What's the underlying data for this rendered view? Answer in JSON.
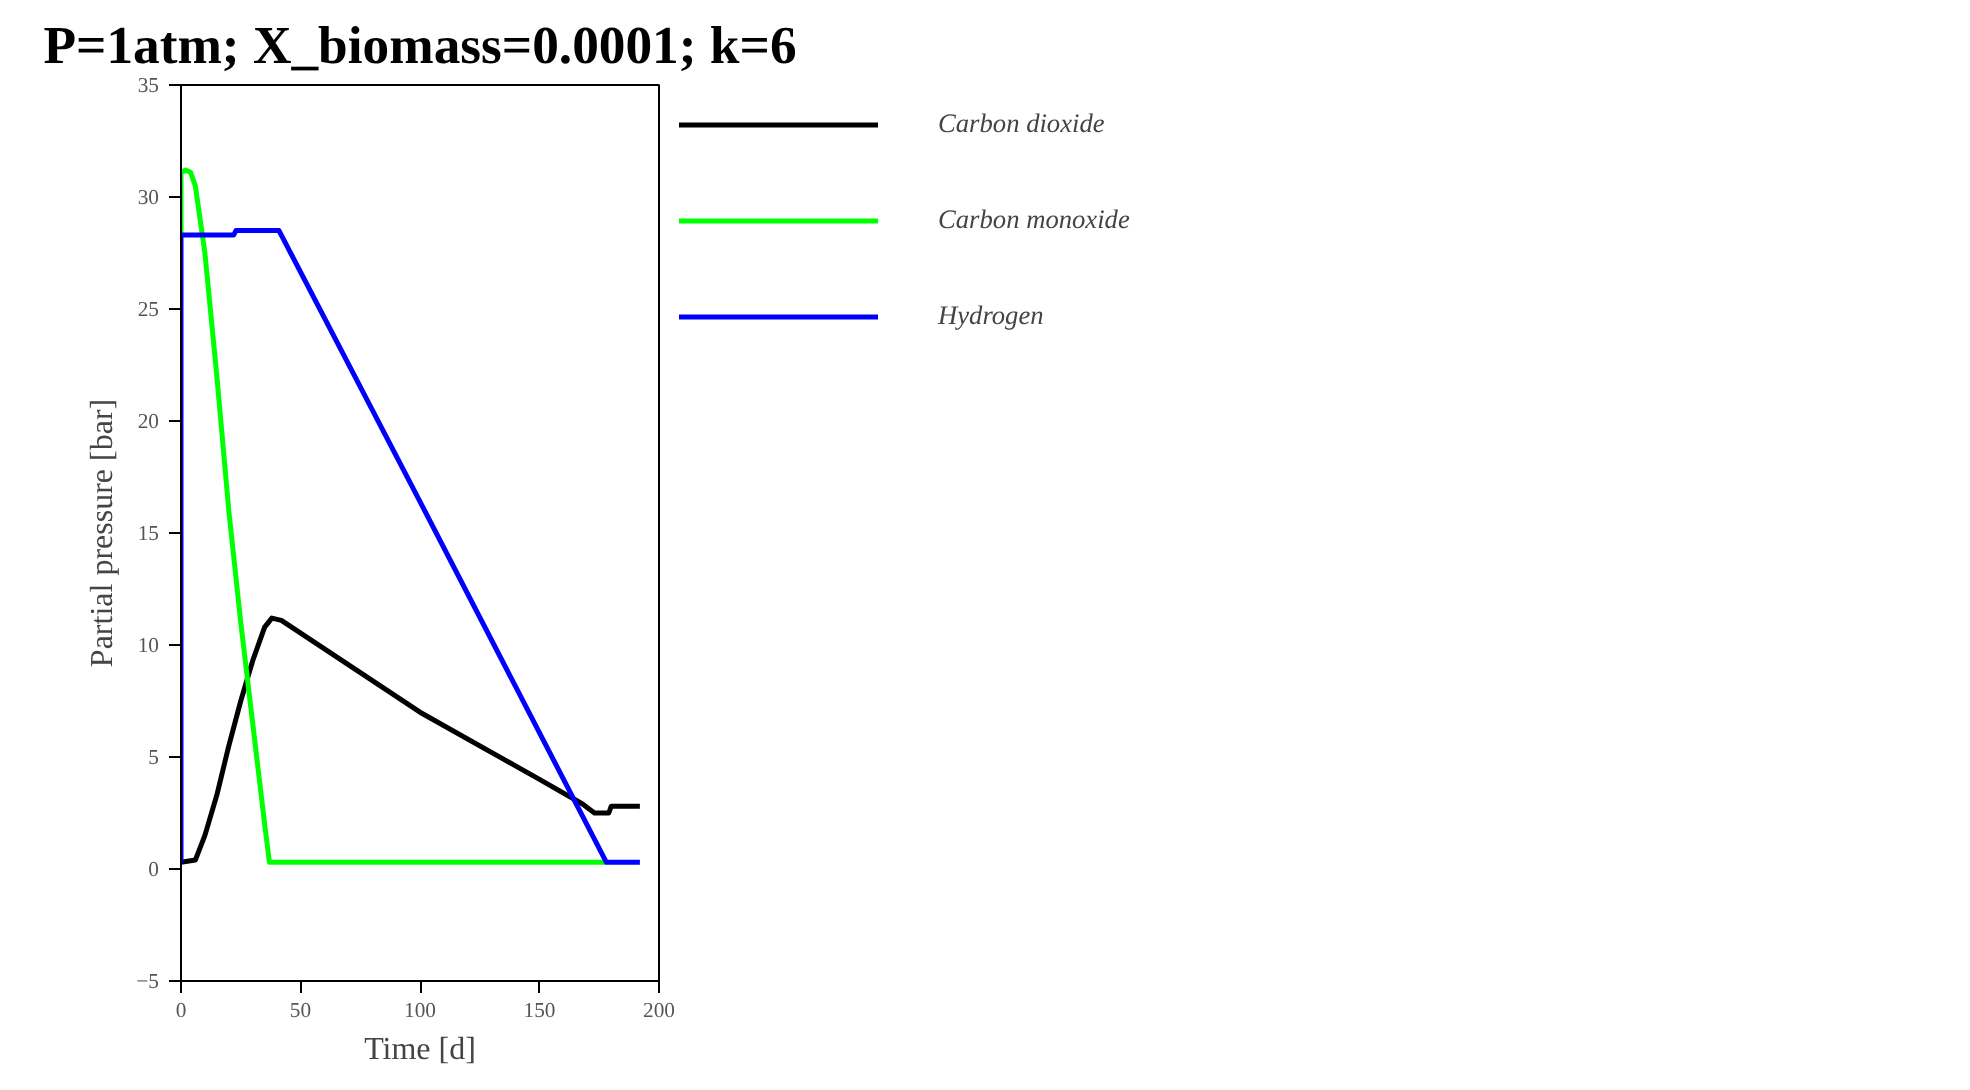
{
  "chart_data": {
    "type": "line",
    "title": "P=1atm; X_biomass=0.0001; k=6",
    "xlabel": "Time [d]",
    "ylabel": "Partial pressure [bar]",
    "xlim": [
      0,
      200
    ],
    "xticks": [
      0,
      50,
      100,
      150,
      200
    ],
    "ylim": [
      -5,
      35
    ],
    "yticks": [
      -5,
      0,
      5,
      10,
      15,
      20,
      25,
      30,
      35
    ],
    "grid": false,
    "legend": "top right",
    "marker": "none",
    "line_style": "solid",
    "series": [
      {
        "name": "Carbon dioxide",
        "color": "#000000",
        "x": [
          0,
          6,
          10,
          15,
          20,
          25,
          30,
          35,
          38,
          42,
          100,
          150,
          168,
          173,
          179,
          180,
          192
        ],
        "values": [
          0.3,
          0.4,
          1.5,
          3.3,
          5.5,
          7.5,
          9.3,
          10.8,
          11.2,
          11.1,
          7.0,
          4.0,
          2.9,
          2.5,
          2.5,
          2.8,
          2.8
        ]
      },
      {
        "name": "Carbon monoxide",
        "color": "#00ff00",
        "x": [
          0,
          0,
          2,
          4,
          6,
          8,
          10,
          15,
          20,
          25,
          30,
          35,
          37,
          178
        ],
        "values": [
          28.3,
          31.1,
          31.2,
          31.1,
          30.5,
          29,
          27.5,
          22,
          16,
          11,
          6.5,
          2,
          0.3,
          0.3
        ]
      },
      {
        "name": "Hydrogen",
        "color": "#0000ff",
        "x": [
          0,
          0,
          22,
          23,
          41,
          100,
          178,
          192
        ],
        "values": [
          0.3,
          28.3,
          28.3,
          28.5,
          28.5,
          16.4,
          0.3,
          0.3
        ]
      }
    ]
  }
}
